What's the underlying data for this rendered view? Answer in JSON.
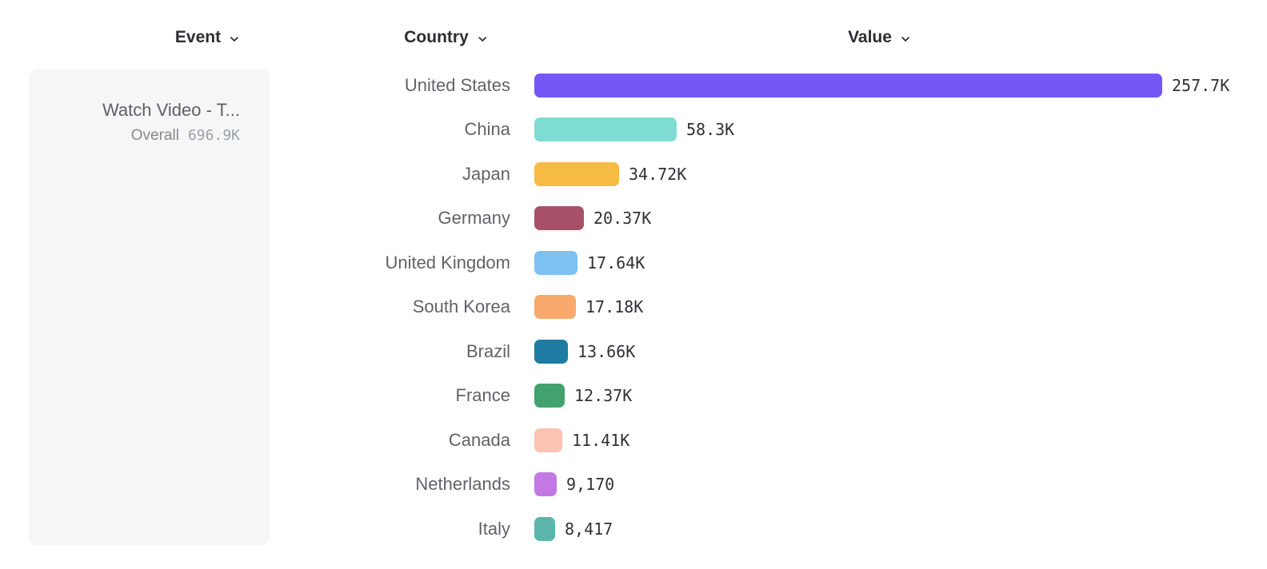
{
  "page": {
    "background": "#ffffff"
  },
  "columns": [
    {
      "id": "event",
      "label": "Event"
    },
    {
      "id": "country",
      "label": "Country"
    },
    {
      "id": "value",
      "label": "Value"
    }
  ],
  "event_panel": {
    "title": "Watch Video - T...",
    "metric_label": "Overall",
    "metric_value": "696.9K"
  },
  "chart_data": {
    "type": "bar",
    "orientation": "horizontal",
    "xlabel": "Value",
    "ylabel": "Country",
    "categories": [
      "United States",
      "China",
      "Japan",
      "Germany",
      "United Kingdom",
      "South Korea",
      "Brazil",
      "France",
      "Canada",
      "Netherlands",
      "Italy"
    ],
    "values": [
      257700,
      58300,
      34720,
      20370,
      17640,
      17180,
      13660,
      12370,
      11410,
      9170,
      8417
    ],
    "value_labels": [
      "257.7K",
      "58.3K",
      "34.72K",
      "20.37K",
      "17.64K",
      "17.18K",
      "13.66K",
      "12.37K",
      "11.41K",
      "9,170",
      "8,417"
    ],
    "bar_colors": [
      "#7557f8",
      "#7edcd2",
      "#f6bb43",
      "#a65169",
      "#7cc1f2",
      "#f9a96c",
      "#1e7ba1",
      "#42a26e",
      "#fcc2b2",
      "#c279e4",
      "#5cb5ab"
    ],
    "xlim": [
      0,
      257700
    ],
    "grid": false,
    "legend": false
  },
  "icons": {
    "chevron_down": "chevron-down"
  }
}
